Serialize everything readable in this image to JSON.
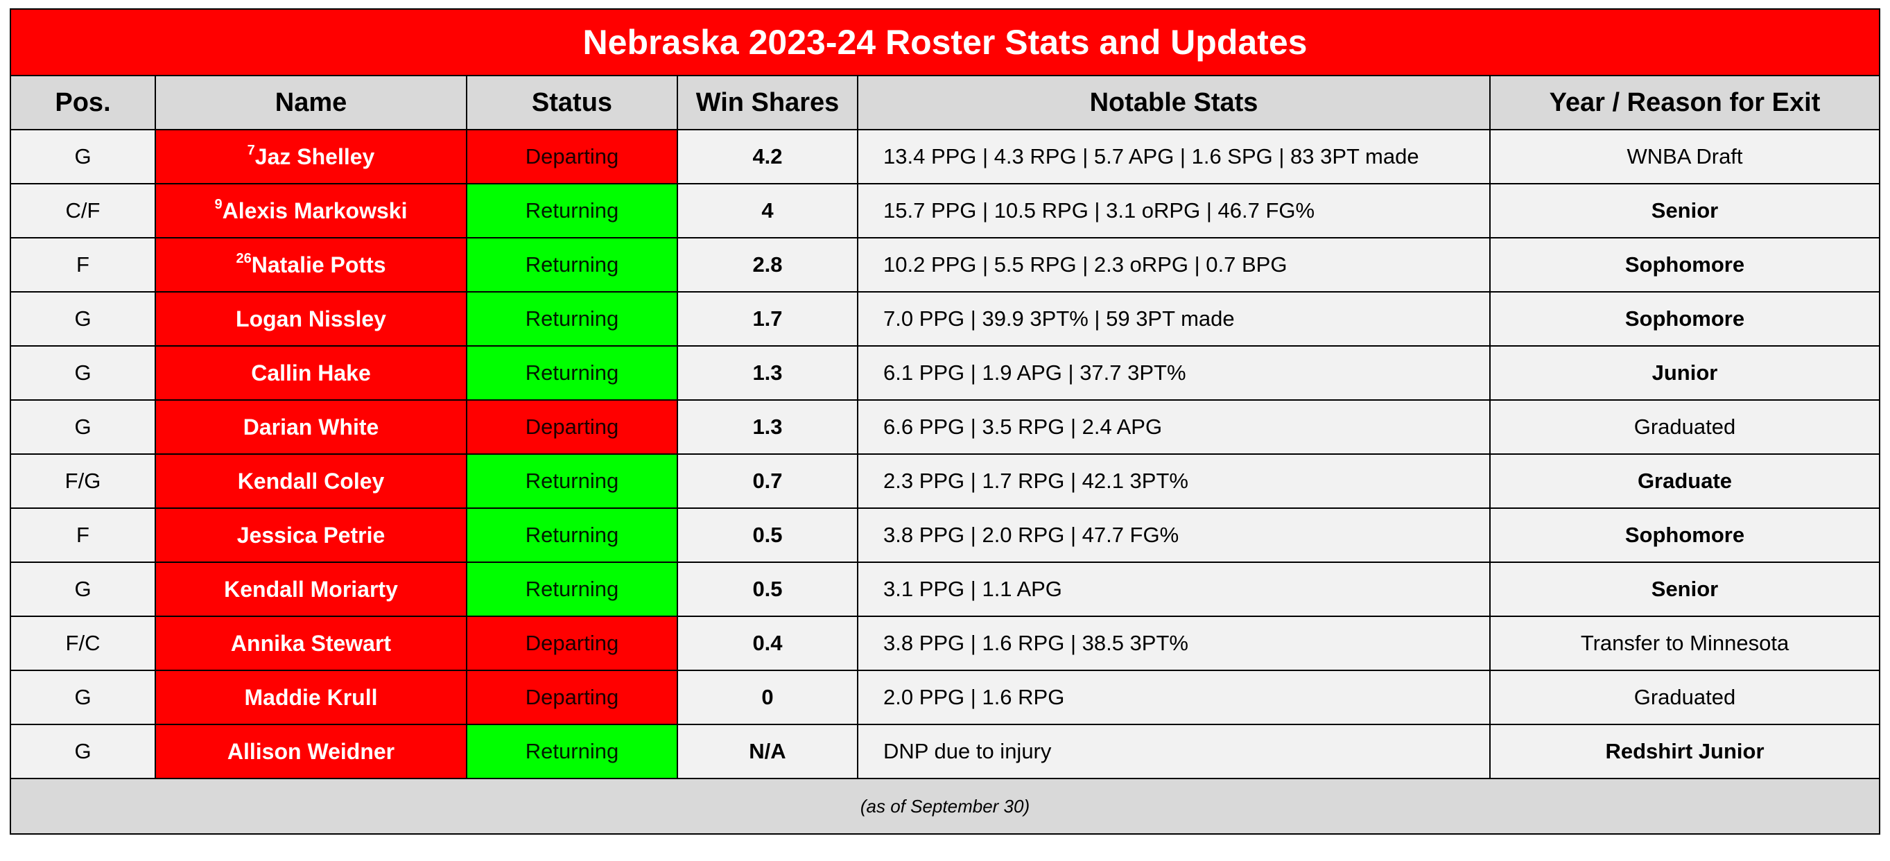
{
  "title": "Nebraska 2023-24 Roster Stats and Updates",
  "headers": {
    "pos": "Pos.",
    "name": "Name",
    "status": "Status",
    "win_shares": "Win Shares",
    "stats": "Notable Stats",
    "exit": "Year / Reason for Exit"
  },
  "rows": [
    {
      "pos": "G",
      "number": "7",
      "name": "Jaz Shelley",
      "status": "Departing",
      "win_shares": "4.2",
      "stats": "13.4 PPG | 4.3 RPG | 5.7 APG | 1.6 SPG | 83 3PT made",
      "exit": "WNBA Draft"
    },
    {
      "pos": "C/F",
      "number": "9",
      "name": "Alexis Markowski",
      "status": "Returning",
      "win_shares": "4",
      "stats": "15.7 PPG | 10.5 RPG | 3.1 oRPG | 46.7 FG%",
      "exit": "Senior"
    },
    {
      "pos": "F",
      "number": "26",
      "name": "Natalie Potts",
      "status": "Returning",
      "win_shares": "2.8",
      "stats": "10.2 PPG | 5.5 RPG | 2.3 oRPG | 0.7 BPG",
      "exit": "Sophomore"
    },
    {
      "pos": "G",
      "number": "",
      "name": "Logan Nissley",
      "status": "Returning",
      "win_shares": "1.7",
      "stats": "7.0 PPG | 39.9 3PT% | 59 3PT made",
      "exit": "Sophomore"
    },
    {
      "pos": "G",
      "number": "",
      "name": "Callin Hake",
      "status": "Returning",
      "win_shares": "1.3",
      "stats": "6.1 PPG | 1.9 APG | 37.7 3PT%",
      "exit": "Junior"
    },
    {
      "pos": "G",
      "number": "",
      "name": "Darian White",
      "status": "Departing",
      "win_shares": "1.3",
      "stats": "6.6 PPG | 3.5 RPG | 2.4 APG",
      "exit": "Graduated"
    },
    {
      "pos": "F/G",
      "number": "",
      "name": "Kendall Coley",
      "status": "Returning",
      "win_shares": "0.7",
      "stats": "2.3 PPG | 1.7 RPG | 42.1 3PT%",
      "exit": "Graduate"
    },
    {
      "pos": "F",
      "number": "",
      "name": "Jessica Petrie",
      "status": "Returning",
      "win_shares": "0.5",
      "stats": "3.8 PPG | 2.0 RPG | 47.7 FG%",
      "exit": "Sophomore"
    },
    {
      "pos": "G",
      "number": "",
      "name": "Kendall Moriarty",
      "status": "Returning",
      "win_shares": "0.5",
      "stats": "3.1 PPG | 1.1 APG",
      "exit": "Senior"
    },
    {
      "pos": "F/C",
      "number": "",
      "name": "Annika Stewart",
      "status": "Departing",
      "win_shares": "0.4",
      "stats": "3.8 PPG | 1.6 RPG | 38.5 3PT%",
      "exit": "Transfer to Minnesota"
    },
    {
      "pos": "G",
      "number": "",
      "name": "Maddie Krull",
      "status": "Departing",
      "win_shares": "0",
      "stats": "2.0 PPG | 1.6 RPG",
      "exit": "Graduated"
    },
    {
      "pos": "G",
      "number": "",
      "name": "Allison Weidner",
      "status": "Returning",
      "win_shares": "N/A",
      "stats": "DNP due to injury",
      "exit": "Redshirt Junior"
    }
  ],
  "footnote": "(as of September 30)",
  "colors": {
    "title_bg": "#ff0000",
    "header_bg": "#d9d9d9",
    "name_bg": "#ff0000",
    "departing": "#ff0000",
    "returning": "#00ff00",
    "row_bg": "#f2f2f2"
  }
}
